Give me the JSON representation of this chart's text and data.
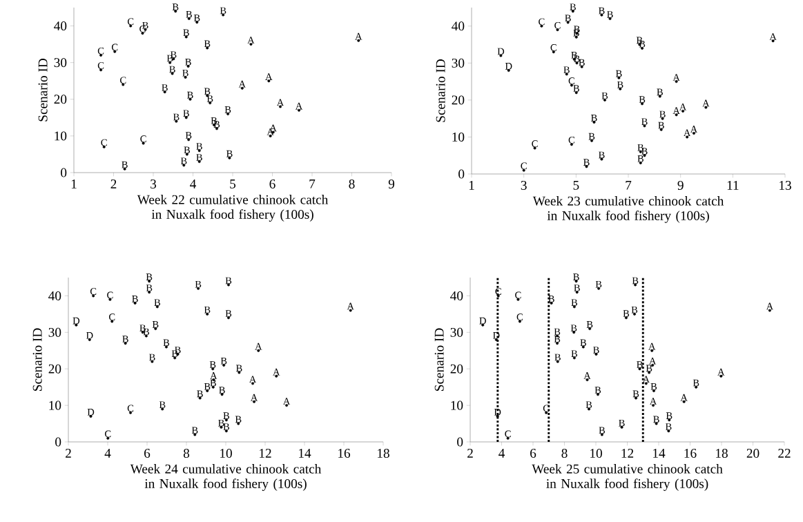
{
  "chart_data": [
    {
      "type": "scatter",
      "xlabel": "Week 22 cumulative chinook catch in Nuxalk food fishery (100s)",
      "ylabel": "Scenario ID",
      "xlim": [
        1,
        9
      ],
      "ylim": [
        0,
        45
      ],
      "xticks": [
        1,
        2,
        3,
        4,
        5,
        6,
        7,
        8,
        9
      ],
      "yticks": [
        0,
        10,
        20,
        30,
        40
      ],
      "series": [
        {
          "name": "A",
          "color": "#000000",
          "x": [
            5.46,
            8.17,
            5.24,
            5.91,
            6.2,
            6.67,
            6.02,
            5.95
          ],
          "values": [
            35,
            36,
            23,
            25,
            18,
            17,
            11,
            10
          ]
        },
        {
          "name": "B",
          "color": "#000000",
          "x": [
            3.56,
            4.76,
            3.9,
            4.1,
            2.8,
            3.83,
            4.36,
            3.51,
            3.42,
            3.88,
            3.48,
            3.81,
            3.29,
            3.93,
            4.36,
            4.43,
            4.88,
            3.83,
            3.58,
            4.53,
            4.6,
            3.89,
            4.16,
            3.85,
            4.16,
            3.77,
            4.92,
            2.28
          ],
          "values": [
            44,
            43,
            42,
            41,
            39,
            37,
            34,
            31,
            30,
            29,
            27,
            26,
            22,
            20,
            21,
            19,
            16,
            15,
            14,
            13,
            12,
            9,
            6,
            5,
            3,
            2,
            4,
            1
          ]
        },
        {
          "name": "C",
          "color": "#000000",
          "x": [
            2.43,
            2.73,
            2.03,
            1.68,
            1.68,
            2.24,
            1.76,
            2.75
          ],
          "values": [
            40,
            38,
            33,
            32,
            28,
            24,
            7,
            8
          ]
        }
      ]
    },
    {
      "type": "scatter",
      "xlabel": "Week 23 cumulative chinook catch in Nuxalk food fishery (100s)",
      "ylabel": "Scenario ID",
      "xlim": [
        1,
        13
      ],
      "ylim": [
        0,
        45
      ],
      "xticks": [
        1,
        3,
        5,
        7,
        9,
        11,
        13
      ],
      "yticks": [
        0,
        10,
        20,
        30,
        40
      ],
      "series": [
        {
          "name": "A",
          "color": "#000000",
          "x": [
            12.54,
            8.84,
            9.97,
            8.84,
            9.09,
            9.25,
            9.51
          ],
          "values": [
            36,
            25,
            18,
            16,
            17,
            10,
            11
          ]
        },
        {
          "name": "B",
          "color": "#000000",
          "x": [
            4.88,
            5.98,
            6.3,
            4.69,
            5.03,
            5.01,
            7.43,
            7.53,
            4.93,
            5.03,
            5.22,
            4.64,
            6.64,
            6.69,
            5.01,
            6.1,
            8.21,
            7.53,
            5.69,
            7.62,
            8.31,
            8.26,
            5.6,
            5.98,
            5.4,
            7.47,
            7.62,
            7.47
          ],
          "values": [
            44,
            43,
            42,
            41,
            38,
            37,
            35,
            34,
            31,
            30,
            29,
            27,
            26,
            23,
            22,
            20,
            21,
            19,
            14,
            13,
            15,
            12,
            9,
            4,
            2,
            6,
            5,
            3
          ]
        },
        {
          "name": "C",
          "color": "#000000",
          "x": [
            3.68,
            4.29,
            4.14,
            4.83,
            3.42,
            4.83,
            3.0
          ],
          "values": [
            40,
            39,
            33,
            24,
            7,
            8,
            1
          ]
        },
        {
          "name": "D",
          "color": "#000000",
          "x": [
            2.12,
            2.42
          ],
          "values": [
            32,
            28
          ]
        }
      ]
    },
    {
      "type": "scatter",
      "xlabel": "Week 24 cumulative chinook catch in Nuxalk food fishery (100s)",
      "ylabel": "Scenario ID",
      "xlim": [
        2,
        18
      ],
      "ylim": [
        0,
        45
      ],
      "xticks": [
        2,
        4,
        6,
        8,
        10,
        12,
        14,
        16,
        18
      ],
      "yticks": [
        0,
        10,
        20,
        30,
        40
      ],
      "series": [
        {
          "name": "A",
          "color": "#000000",
          "x": [
            16.34,
            11.66,
            12.57,
            11.37,
            9.38,
            11.44,
            13.09
          ],
          "values": [
            36,
            25,
            18,
            16,
            17,
            11,
            10
          ]
        },
        {
          "name": "B",
          "color": "#000000",
          "x": [
            6.11,
            8.6,
            10.14,
            6.11,
            5.39,
            6.52,
            9.06,
            10.14,
            6.43,
            5.78,
            5.96,
            4.9,
            6.98,
            7.56,
            7.41,
            6.26,
            9.9,
            9.34,
            10.68,
            9.36,
            9.06,
            9.81,
            8.69,
            6.78,
            10.03,
            10.64,
            9.77,
            10.03,
            8.43
          ],
          "values": [
            44,
            42,
            43,
            41,
            38,
            37,
            35,
            34,
            31,
            30,
            29,
            27,
            26,
            24,
            23,
            22,
            21,
            20,
            19,
            15,
            14,
            13,
            12,
            9,
            6,
            5,
            4,
            3,
            2
          ]
        },
        {
          "name": "C",
          "color": "#000000",
          "x": [
            3.27,
            4.12,
            4.22,
            5.16,
            4.01
          ],
          "values": [
            40,
            39,
            33,
            8,
            1
          ]
        },
        {
          "name": "D",
          "color": "#000000",
          "x": [
            2.4,
            3.08,
            3.14
          ],
          "values": [
            32,
            28,
            7
          ]
        }
      ]
    },
    {
      "type": "scatter",
      "xlabel": "Week 25 cumulative chinook catch in Nuxalk food fishery (100s)",
      "ylabel": "Scenario ID",
      "xlim": [
        2,
        22
      ],
      "ylim": [
        0,
        45
      ],
      "xticks": [
        2,
        4,
        6,
        8,
        10,
        12,
        14,
        16,
        18,
        20,
        22
      ],
      "yticks": [
        0,
        10,
        20,
        30,
        40
      ],
      "ref_lines": [
        {
          "axis": "x",
          "value": 3.75,
          "color": "#000000",
          "line_style": "dotted"
        },
        {
          "axis": "x",
          "value": 7,
          "color": "#000000",
          "line_style": "dotted"
        },
        {
          "axis": "x",
          "value": 13,
          "color": "#000000",
          "line_style": "dotted"
        }
      ],
      "series": [
        {
          "name": "A",
          "color": "#000000",
          "x": [
            21.07,
            13.57,
            13.61,
            9.45,
            13.2,
            13.65,
            15.61,
            17.97
          ],
          "values": [
            36,
            25,
            21,
            17,
            16,
            10,
            11,
            18
          ]
        },
        {
          "name": "B",
          "color": "#000000",
          "x": [
            8.75,
            8.8,
            10.18,
            12.51,
            7.17,
            8.63,
            12.46,
            11.93,
            9.61,
            8.6,
            7.54,
            7.54,
            9.2,
            10.02,
            8.63,
            7.57,
            12.79,
            13.39,
            13.69,
            10.13,
            12.55,
            9.56,
            16.38,
            13.85,
            14.67,
            14.63,
            11.65,
            10.39
          ],
          "values": [
            44,
            41,
            42,
            43,
            38,
            37,
            35,
            34,
            31,
            30,
            29,
            27,
            26,
            24,
            23,
            22,
            20,
            19,
            14,
            13,
            12,
            9,
            15,
            5,
            6,
            3,
            4,
            2
          ]
        },
        {
          "name": "C",
          "color": "#000000",
          "x": [
            3.79,
            5.05,
            5.16,
            6.84,
            4.4
          ],
          "values": [
            40,
            39,
            33,
            8,
            1
          ]
        },
        {
          "name": "D",
          "color": "#000000",
          "x": [
            2.8,
            3.66,
            3.74
          ],
          "values": [
            32,
            28,
            7
          ]
        }
      ]
    }
  ]
}
